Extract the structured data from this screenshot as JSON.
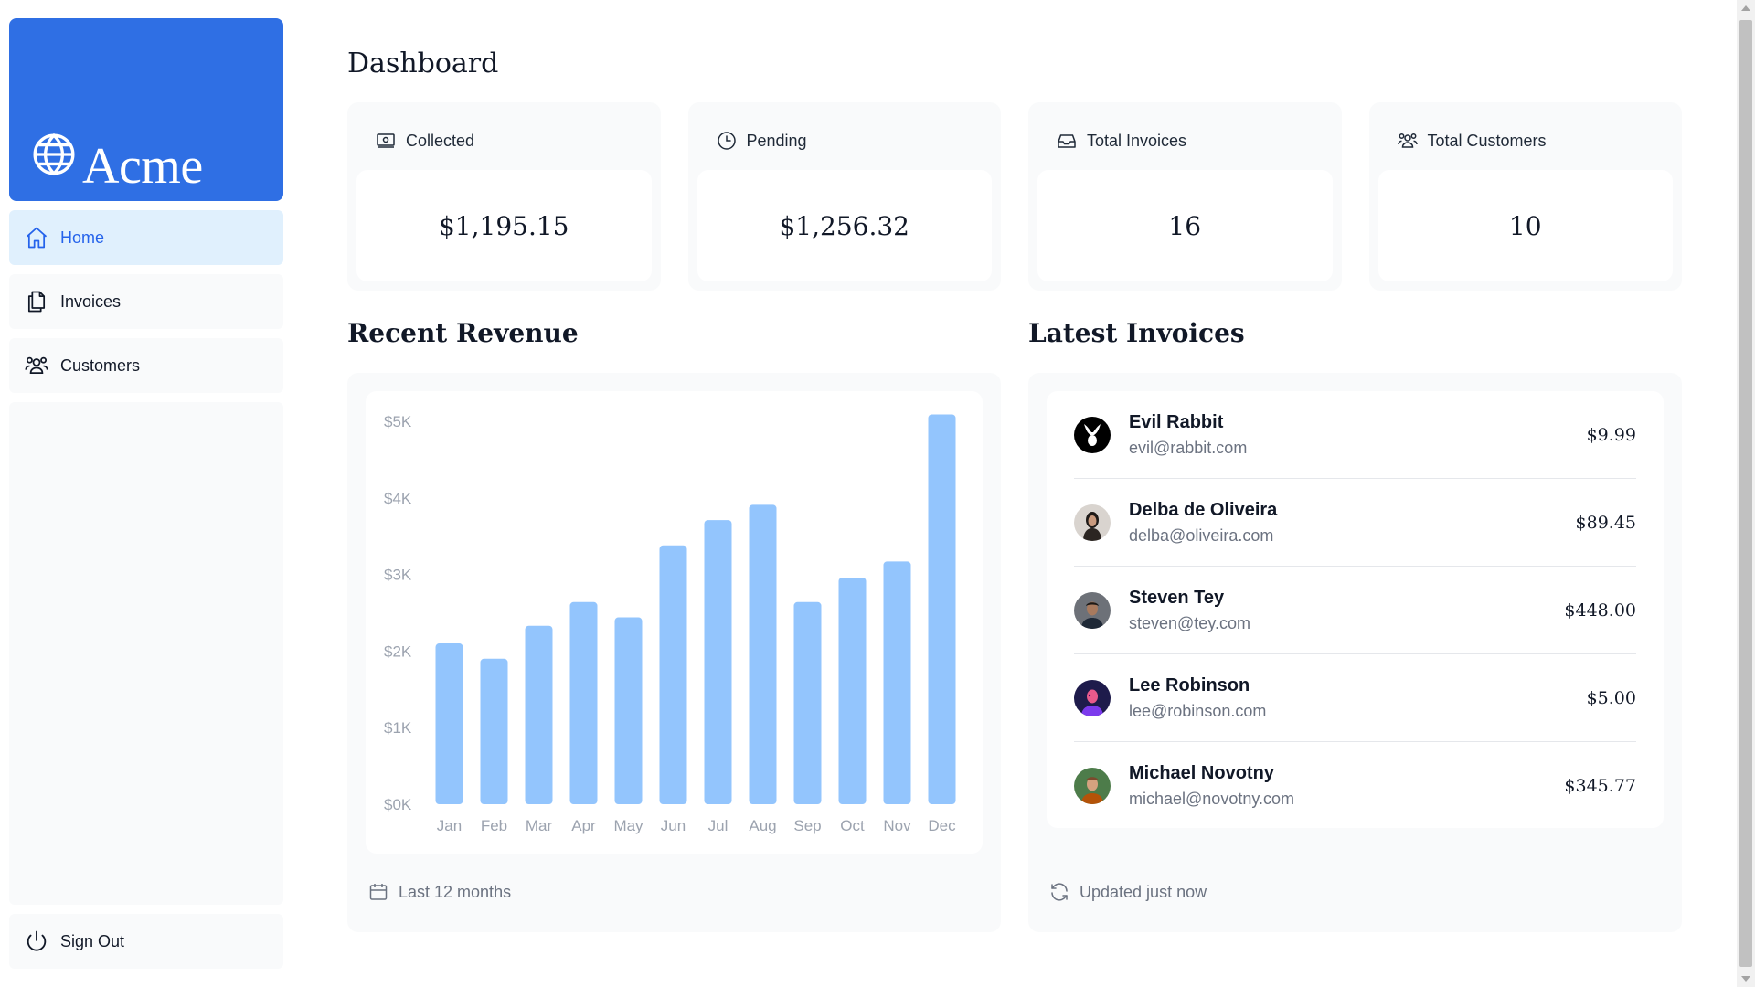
{
  "brand": {
    "name": "Acme",
    "color": "#2f6fe4"
  },
  "sidebar": {
    "items": [
      {
        "label": "Home",
        "icon": "home-icon",
        "active": true
      },
      {
        "label": "Invoices",
        "icon": "document-icon",
        "active": false
      },
      {
        "label": "Customers",
        "icon": "users-icon",
        "active": false
      }
    ],
    "signout_label": "Sign Out"
  },
  "page": {
    "title": "Dashboard"
  },
  "cards": [
    {
      "label": "Collected",
      "value": "$1,195.15",
      "icon": "banknote-icon"
    },
    {
      "label": "Pending",
      "value": "$1,256.32",
      "icon": "clock-icon"
    },
    {
      "label": "Total Invoices",
      "value": "16",
      "icon": "inbox-icon"
    },
    {
      "label": "Total Customers",
      "value": "10",
      "icon": "users-icon"
    }
  ],
  "revenue": {
    "title": "Recent Revenue",
    "footer": "Last 12 months"
  },
  "chart_data": {
    "type": "bar",
    "categories": [
      "Jan",
      "Feb",
      "Mar",
      "Apr",
      "May",
      "Jun",
      "Jul",
      "Aug",
      "Sep",
      "Oct",
      "Nov",
      "Dec"
    ],
    "values": [
      2100,
      1900,
      2330,
      2640,
      2440,
      3380,
      3710,
      3910,
      2640,
      2960,
      3170,
      5090
    ],
    "ylim": [
      0,
      5000
    ],
    "yticks": [
      "$5K",
      "$4K",
      "$3K",
      "$2K",
      "$1K",
      "$0K"
    ],
    "bar_color": "#93c5fd",
    "grid": false
  },
  "invoices": {
    "title": "Latest Invoices",
    "footer": "Updated just now",
    "items": [
      {
        "name": "Evil Rabbit",
        "email": "evil@rabbit.com",
        "amount": "$9.99"
      },
      {
        "name": "Delba de Oliveira",
        "email": "delba@oliveira.com",
        "amount": "$89.45"
      },
      {
        "name": "Steven Tey",
        "email": "steven@tey.com",
        "amount": "$448.00"
      },
      {
        "name": "Lee Robinson",
        "email": "lee@robinson.com",
        "amount": "$5.00"
      },
      {
        "name": "Michael Novotny",
        "email": "michael@novotny.com",
        "amount": "$345.77"
      }
    ]
  }
}
